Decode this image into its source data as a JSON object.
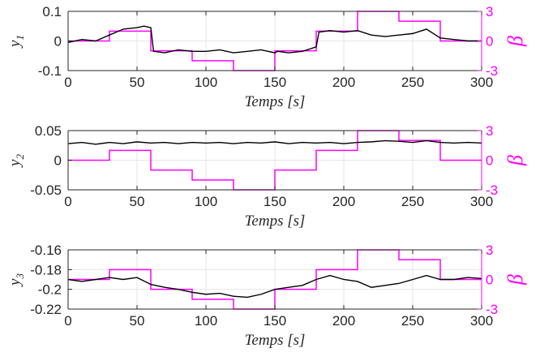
{
  "chart_data": [
    {
      "type": "line",
      "xlabel": "Temps [s]",
      "ylabel": "y1",
      "ylabel_right": "β",
      "xlim": [
        0,
        300
      ],
      "ylim": [
        -0.1,
        0.1
      ],
      "ylim_right": [
        -3,
        3
      ],
      "xticks": [
        "0",
        "50",
        "100",
        "150",
        "200",
        "250",
        "300"
      ],
      "yticks": [
        "0.1",
        "0",
        "-0.1"
      ],
      "yticks_right": [
        "3",
        "0",
        "-3"
      ],
      "grid": true,
      "series": [
        {
          "axis": "left",
          "color": "#000000",
          "x": [
            0,
            10,
            20,
            30,
            40,
            50,
            55,
            60,
            62,
            70,
            80,
            90,
            100,
            110,
            120,
            130,
            140,
            150,
            152,
            160,
            170,
            180,
            182,
            190,
            200,
            210,
            220,
            230,
            240,
            250,
            260,
            270,
            280,
            290,
            300
          ],
          "y": [
            -0.005,
            0.005,
            0.0,
            0.02,
            0.04,
            0.045,
            0.05,
            0.045,
            -0.035,
            -0.04,
            -0.03,
            -0.035,
            -0.035,
            -0.03,
            -0.04,
            -0.035,
            -0.03,
            -0.04,
            -0.035,
            -0.04,
            -0.035,
            -0.02,
            0.03,
            0.035,
            0.03,
            0.035,
            0.02,
            0.015,
            0.02,
            0.025,
            0.04,
            0.01,
            0.005,
            0.0,
            0.0
          ]
        },
        {
          "axis": "right",
          "color": "#ff00ff",
          "x": [
            0,
            30,
            30,
            60,
            60,
            90,
            90,
            120,
            120,
            150,
            150,
            180,
            180,
            210,
            210,
            240,
            240,
            270,
            270,
            300
          ],
          "y": [
            0,
            0,
            1,
            1,
            -1,
            -1,
            -2,
            -2,
            -3,
            -3,
            -1,
            -1,
            1,
            1,
            3,
            3,
            2,
            2,
            0,
            0
          ]
        }
      ]
    },
    {
      "type": "line",
      "xlabel": "Temps [s]",
      "ylabel": "y2",
      "ylabel_right": "β",
      "xlim": [
        0,
        300
      ],
      "ylim": [
        -0.05,
        0.05
      ],
      "ylim_right": [
        -3,
        3
      ],
      "xticks": [
        "0",
        "50",
        "100",
        "150",
        "200",
        "250",
        "300"
      ],
      "yticks": [
        "0.05",
        "0",
        "-0.05"
      ],
      "yticks_right": [
        "3",
        "0",
        "-3"
      ],
      "grid": true,
      "series": [
        {
          "axis": "left",
          "color": "#000000",
          "x": [
            0,
            10,
            20,
            30,
            40,
            50,
            60,
            70,
            80,
            90,
            100,
            110,
            120,
            130,
            140,
            150,
            160,
            170,
            180,
            190,
            200,
            210,
            220,
            230,
            240,
            250,
            260,
            270,
            280,
            290,
            300
          ],
          "y": [
            0.028,
            0.03,
            0.027,
            0.03,
            0.028,
            0.031,
            0.029,
            0.03,
            0.028,
            0.03,
            0.029,
            0.03,
            0.028,
            0.03,
            0.029,
            0.031,
            0.028,
            0.03,
            0.029,
            0.03,
            0.028,
            0.03,
            0.031,
            0.033,
            0.032,
            0.03,
            0.033,
            0.03,
            0.029,
            0.03,
            0.029
          ]
        },
        {
          "axis": "right",
          "color": "#ff00ff",
          "x": [
            0,
            30,
            30,
            60,
            60,
            90,
            90,
            120,
            120,
            150,
            150,
            180,
            180,
            210,
            210,
            240,
            240,
            270,
            270,
            300
          ],
          "y": [
            0,
            0,
            1,
            1,
            -1,
            -1,
            -2,
            -2,
            -3,
            -3,
            -1,
            -1,
            1,
            1,
            3,
            3,
            2,
            2,
            0,
            0
          ]
        }
      ]
    },
    {
      "type": "line",
      "xlabel": "Temps [s]",
      "ylabel": "y3",
      "ylabel_right": "β",
      "xlim": [
        0,
        300
      ],
      "ylim": [
        -0.22,
        -0.16
      ],
      "ylim_right": [
        -3,
        3
      ],
      "xticks": [
        "0",
        "50",
        "100",
        "150",
        "200",
        "250",
        "300"
      ],
      "yticks": [
        "-0.16",
        "-0.18",
        "-0.2",
        "-0.22"
      ],
      "yticks_right": [
        "3",
        "0",
        "-3"
      ],
      "grid": true,
      "series": [
        {
          "axis": "left",
          "color": "#000000",
          "x": [
            0,
            10,
            20,
            30,
            40,
            50,
            60,
            70,
            80,
            90,
            100,
            110,
            120,
            130,
            140,
            150,
            160,
            170,
            180,
            190,
            200,
            210,
            220,
            230,
            240,
            250,
            260,
            270,
            280,
            290,
            300
          ],
          "y": [
            -0.19,
            -0.192,
            -0.19,
            -0.188,
            -0.19,
            -0.188,
            -0.195,
            -0.198,
            -0.2,
            -0.203,
            -0.205,
            -0.204,
            -0.207,
            -0.208,
            -0.205,
            -0.2,
            -0.198,
            -0.196,
            -0.19,
            -0.186,
            -0.19,
            -0.192,
            -0.198,
            -0.196,
            -0.194,
            -0.19,
            -0.186,
            -0.19,
            -0.19,
            -0.188,
            -0.189
          ]
        },
        {
          "axis": "right",
          "color": "#ff00ff",
          "x": [
            0,
            30,
            30,
            60,
            60,
            90,
            90,
            120,
            120,
            150,
            150,
            180,
            180,
            210,
            210,
            240,
            240,
            270,
            270,
            300
          ],
          "y": [
            0,
            0,
            1,
            1,
            -1,
            -1,
            -2,
            -2,
            -3,
            -3,
            -1,
            -1,
            1,
            1,
            3,
            3,
            2,
            2,
            0,
            0
          ]
        }
      ]
    }
  ]
}
